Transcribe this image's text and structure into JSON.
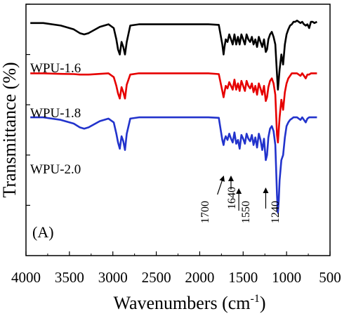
{
  "chart_data": {
    "type": "line",
    "panel_label": "(A)",
    "xlabel": "Wavenumbers (cm",
    "xlabel_sup": "-1",
    "xlabel_close": ")",
    "ylabel": "Transmittance (%)",
    "xlim": [
      4000,
      500
    ],
    "x_ticks": [
      "4000",
      "3500",
      "3000",
      "2500",
      "2000",
      "1500",
      "1000",
      "500"
    ],
    "x_tick_values": [
      4000,
      3500,
      3000,
      2500,
      2000,
      1500,
      1000,
      500
    ],
    "y_tick_labels": "none",
    "ylim": [
      0,
      100
    ],
    "series": [
      {
        "name": "WPU-1.6",
        "color": "#000000",
        "x": [
          3950,
          3800,
          3600,
          3450,
          3380,
          3330,
          3280,
          3150,
          3050,
          2990,
          2960,
          2940,
          2920,
          2900,
          2880,
          2860,
          2840,
          2800,
          2700,
          2500,
          2300,
          2100,
          1900,
          1780,
          1740,
          1725,
          1715,
          1700,
          1680,
          1660,
          1640,
          1620,
          1600,
          1580,
          1560,
          1540,
          1520,
          1500,
          1480,
          1460,
          1440,
          1420,
          1400,
          1380,
          1360,
          1340,
          1320,
          1300,
          1280,
          1260,
          1240,
          1225,
          1210,
          1190,
          1170,
          1150,
          1130,
          1110,
          1100,
          1090,
          1080,
          1060,
          1040,
          1020,
          1000,
          980,
          960,
          940,
          920,
          900,
          880,
          860,
          840,
          820,
          800,
          780,
          760,
          740,
          720,
          700,
          680,
          650
        ],
        "y": [
          92.5,
          92.5,
          91.5,
          90,
          88.5,
          88,
          88.5,
          91,
          92,
          90.5,
          86,
          82,
          80,
          85,
          83,
          80,
          85,
          91.5,
          92,
          92,
          92,
          92,
          92,
          91.8,
          84,
          80,
          83,
          86,
          85,
          88,
          86,
          84,
          88,
          84,
          87,
          84,
          88,
          86,
          84,
          88,
          86,
          85,
          87,
          84,
          86,
          83,
          87,
          85,
          83,
          86,
          81,
          82,
          86,
          88,
          89,
          87,
          84,
          72,
          66,
          70,
          74,
          80,
          76,
          84,
          88,
          90,
          91.5,
          92,
          93,
          93,
          93.5,
          93,
          92.5,
          93,
          92,
          91.5,
          92,
          90.5,
          93,
          93,
          92.5,
          93
        ]
      },
      {
        "name": "WPU-1.8",
        "color": "#e60000",
        "x": [
          3950,
          3800,
          3600,
          3450,
          3380,
          3330,
          3280,
          3150,
          3050,
          2990,
          2960,
          2940,
          2920,
          2900,
          2880,
          2860,
          2840,
          2800,
          2700,
          2500,
          2300,
          2100,
          1900,
          1780,
          1740,
          1725,
          1715,
          1700,
          1680,
          1660,
          1640,
          1620,
          1600,
          1580,
          1560,
          1540,
          1520,
          1500,
          1480,
          1460,
          1440,
          1420,
          1400,
          1380,
          1360,
          1340,
          1320,
          1300,
          1280,
          1260,
          1240,
          1225,
          1210,
          1190,
          1170,
          1150,
          1130,
          1110,
          1100,
          1090,
          1080,
          1060,
          1040,
          1020,
          1000,
          980,
          960,
          940,
          920,
          900,
          880,
          860,
          840,
          820,
          800,
          780,
          760,
          740,
          720,
          700,
          680,
          650
        ],
        "y": [
          72.5,
          72.5,
          72.3,
          72.2,
          72,
          72,
          72,
          72.3,
          72.5,
          71,
          67.5,
          64.5,
          62.5,
          67,
          65,
          62.5,
          68,
          72,
          72.5,
          72.5,
          72.5,
          72.5,
          72.5,
          72.2,
          65.5,
          63,
          65,
          67.5,
          66.5,
          69,
          67.5,
          66,
          70,
          66,
          68.5,
          65.5,
          69.5,
          67.5,
          65.5,
          69.5,
          67.5,
          66.5,
          68.5,
          65,
          67.5,
          64,
          68.5,
          66.5,
          64,
          67.5,
          61.5,
          63,
          67,
          69.5,
          70.5,
          68.5,
          64,
          48,
          45,
          50,
          55,
          62,
          58,
          65,
          68.5,
          70.5,
          71.5,
          72.5,
          72.5,
          72.5,
          72.5,
          72,
          71.5,
          72.5,
          71.5,
          70.5,
          72,
          72,
          72.5,
          72.5,
          72.5,
          72.5
        ]
      },
      {
        "name": "WPU-2.0",
        "color": "#2233cc",
        "x": [
          3950,
          3800,
          3600,
          3450,
          3380,
          3330,
          3280,
          3150,
          3050,
          2990,
          2960,
          2940,
          2920,
          2900,
          2880,
          2860,
          2840,
          2800,
          2700,
          2500,
          2300,
          2100,
          1900,
          1780,
          1740,
          1725,
          1715,
          1700,
          1680,
          1660,
          1640,
          1620,
          1600,
          1580,
          1560,
          1540,
          1520,
          1500,
          1480,
          1460,
          1440,
          1420,
          1400,
          1380,
          1360,
          1340,
          1320,
          1300,
          1280,
          1260,
          1240,
          1225,
          1210,
          1190,
          1170,
          1150,
          1130,
          1110,
          1100,
          1090,
          1080,
          1060,
          1040,
          1020,
          1000,
          980,
          960,
          940,
          920,
          900,
          880,
          860,
          840,
          820,
          800,
          780,
          760,
          740,
          720,
          700,
          680,
          650
        ],
        "y": [
          55,
          55,
          54,
          52.5,
          51,
          50.5,
          51,
          53.5,
          54.5,
          53,
          48.5,
          45,
          42.5,
          47.5,
          45.5,
          42,
          48.5,
          54.5,
          55,
          55,
          55,
          55,
          55,
          54.8,
          46,
          44,
          46,
          47.5,
          46,
          48.5,
          46.5,
          45,
          49,
          44.5,
          46,
          42.5,
          48,
          46.5,
          44.5,
          48.5,
          46.5,
          45.5,
          48,
          44,
          47,
          43,
          48.5,
          46,
          42,
          46.5,
          38,
          40,
          47,
          50.5,
          51.5,
          49.5,
          44,
          24,
          17,
          22,
          30,
          38,
          40,
          47,
          51.5,
          53,
          54,
          54.5,
          55,
          55,
          55,
          54.5,
          54,
          55,
          54,
          53,
          54.5,
          55,
          55,
          55,
          55,
          55
        ]
      }
    ],
    "annotations": [
      "1700",
      "1640",
      "1550",
      "1240"
    ],
    "annotation_x": [
      1700,
      1640,
      1550,
      1240
    ]
  }
}
